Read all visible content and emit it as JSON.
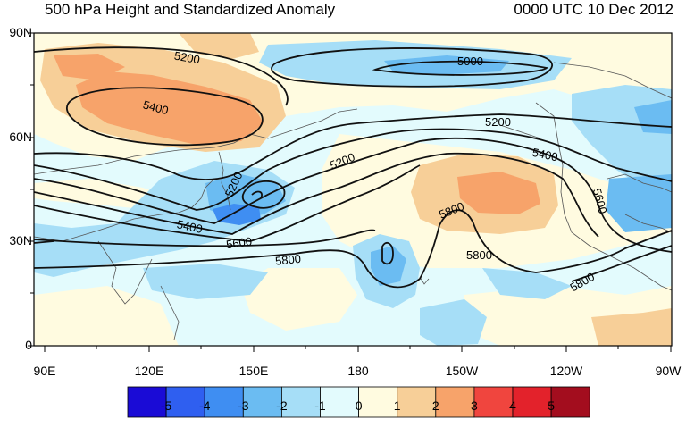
{
  "title_left": "500 hPa Height and Standardized Anomaly",
  "title_right": "0000 UTC 10 Dec 2012",
  "y_ticks": [
    "90N",
    "60N",
    "30N",
    "0"
  ],
  "x_ticks": [
    "90E",
    "120E",
    "150E",
    "180",
    "150W",
    "120W",
    "90W"
  ],
  "contour_labels": [
    "5200",
    "5000",
    "5400",
    "5200",
    "5200",
    "5400",
    "5200",
    "5800",
    "5600",
    "5400",
    "5600",
    "5800",
    "5800",
    "5800"
  ],
  "colorbar": {
    "labels": [
      "-5",
      "-4",
      "-3",
      "-2",
      "-1",
      "0",
      "1",
      "2",
      "3",
      "4",
      "5"
    ],
    "colors": [
      "#1a0bd6",
      "#2f5ff0",
      "#3f8ef2",
      "#6bbcf2",
      "#a6def7",
      "#e3fbfd",
      "#fffbe0",
      "#f7cf98",
      "#f7a36a",
      "#f0453e",
      "#e3222b",
      "#a30d1e"
    ]
  }
}
